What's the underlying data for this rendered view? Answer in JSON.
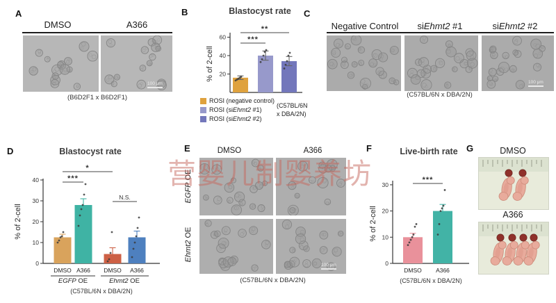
{
  "watermark": {
    "text": "营婴儿制婴养坊"
  },
  "panel_a": {
    "label": "A",
    "col1": "DMSO",
    "col2": "A366",
    "caption": "(B6D2F1 x B6D2F1)",
    "scale_bar": "100 μm"
  },
  "panel_b": {
    "label": "B"
  },
  "panel_c": {
    "label": "C",
    "columns": [
      {
        "pre": "Negative Control",
        "italic": "",
        "post": ""
      },
      {
        "pre": "si",
        "italic": "Ehmt2",
        "post": " #1"
      },
      {
        "pre": "si",
        "italic": "Ehmt2",
        "post": " #2"
      }
    ],
    "caption": "(C57BL/6N x DBA/2N)",
    "scale_bar": "100 μm"
  },
  "panel_d": {
    "label": "D"
  },
  "panel_e": {
    "label": "E",
    "col1": "DMSO",
    "col2": "A366",
    "rows": [
      {
        "pre": "",
        "italic": "EGFP",
        "post": " OE"
      },
      {
        "pre": "",
        "italic": "Ehmt2",
        "post": " OE"
      }
    ],
    "caption": "(C57BL/6N x DBA/2N)",
    "scale_bar": "100 μm"
  },
  "panel_f": {
    "label": "F"
  },
  "panel_g": {
    "label": "G",
    "photo1_label": "DMSO",
    "photo2_label": "A366",
    "photo1_pups": 2,
    "photo2_pups": 4
  },
  "chart_data": [
    {
      "id": "B",
      "type": "bar",
      "title": "Blastocyst rate",
      "ylabel": "% of 2-cell",
      "ylim": [
        0,
        60
      ],
      "yticks": [
        20,
        40,
        60
      ],
      "categories": [
        "ROSI (negative control)",
        "ROSI (siEhmt2 #1)",
        "ROSI (siEhmt2 #2)"
      ],
      "values": [
        16,
        40,
        34
      ],
      "errors": [
        2,
        5,
        5
      ],
      "colors": [
        "#dfa23e",
        "#9799cb",
        "#7377bb"
      ],
      "points": [
        [
          13,
          14,
          15,
          16,
          17
        ],
        [
          33,
          36,
          40,
          44,
          46
        ],
        [
          26,
          30,
          34,
          40,
          43
        ]
      ],
      "significance": [
        {
          "bars": [
            0,
            1
          ],
          "label": "***"
        },
        {
          "bars": [
            0,
            2
          ],
          "label": "**"
        }
      ],
      "legend": [
        {
          "color": "#dfa23e",
          "pre": "ROSI (negative control)",
          "italic": "",
          "post": ""
        },
        {
          "color": "#9799cb",
          "pre": "ROSI (si",
          "italic": "Ehmt2",
          "post": " #1)"
        },
        {
          "color": "#7377bb",
          "pre": "ROSI (si",
          "italic": "Ehmt2",
          "post": " #2)"
        }
      ],
      "annotation_lines": [
        "(C57BL/6N",
        "x DBA/2N)"
      ],
      "legend_position": "bottom-left"
    },
    {
      "id": "D",
      "type": "bar",
      "title": "Blastocyst rate",
      "ylabel": "% of 2-cell",
      "ylim": [
        0,
        40
      ],
      "yticks": [
        0,
        10,
        20,
        30,
        40
      ],
      "categories": [
        "DMSO",
        "A366",
        "DMSO",
        "A366"
      ],
      "groups": [
        {
          "pre": "",
          "italic": "EGFP",
          "post": " OE"
        },
        {
          "pre": "",
          "italic": "Ehmt2",
          "post": " OE"
        }
      ],
      "values": [
        12.5,
        28,
        4.5,
        12.5
      ],
      "errors": [
        1.5,
        3,
        3,
        3
      ],
      "colors": [
        "#d9a35c",
        "#3fb3a4",
        "#cd6045",
        "#4e80bf"
      ],
      "points": [
        [
          10,
          11,
          12.5,
          13,
          15
        ],
        [
          18,
          23,
          26,
          28,
          33,
          38
        ],
        [
          1,
          2,
          5,
          15
        ],
        [
          3,
          7,
          10,
          13,
          17,
          22
        ]
      ],
      "significance": [
        {
          "bars": [
            0,
            1
          ],
          "label": "***"
        },
        {
          "bars": [
            0,
            2
          ],
          "label": "*"
        },
        {
          "bars": [
            2,
            3
          ],
          "label": "N.S."
        }
      ],
      "caption": "(C57BL/6N x DBA/2N)"
    },
    {
      "id": "F",
      "type": "bar",
      "title": "Live-birth rate",
      "ylabel": "% of 2-cell",
      "ylim": [
        0,
        30
      ],
      "yticks": [
        0,
        10,
        20,
        30
      ],
      "categories": [
        "DMSO",
        "A366"
      ],
      "values": [
        10,
        20
      ],
      "errors": [
        1.5,
        2.5
      ],
      "colors": [
        "#e9919b",
        "#42b3a6"
      ],
      "points": [
        [
          7,
          8,
          9,
          10,
          11,
          14,
          15
        ],
        [
          11,
          15,
          20,
          21,
          22,
          28
        ]
      ],
      "significance": [
        {
          "bars": [
            0,
            1
          ],
          "label": "***"
        }
      ],
      "caption": "(C57BL/6N x DBA/2N)"
    }
  ]
}
